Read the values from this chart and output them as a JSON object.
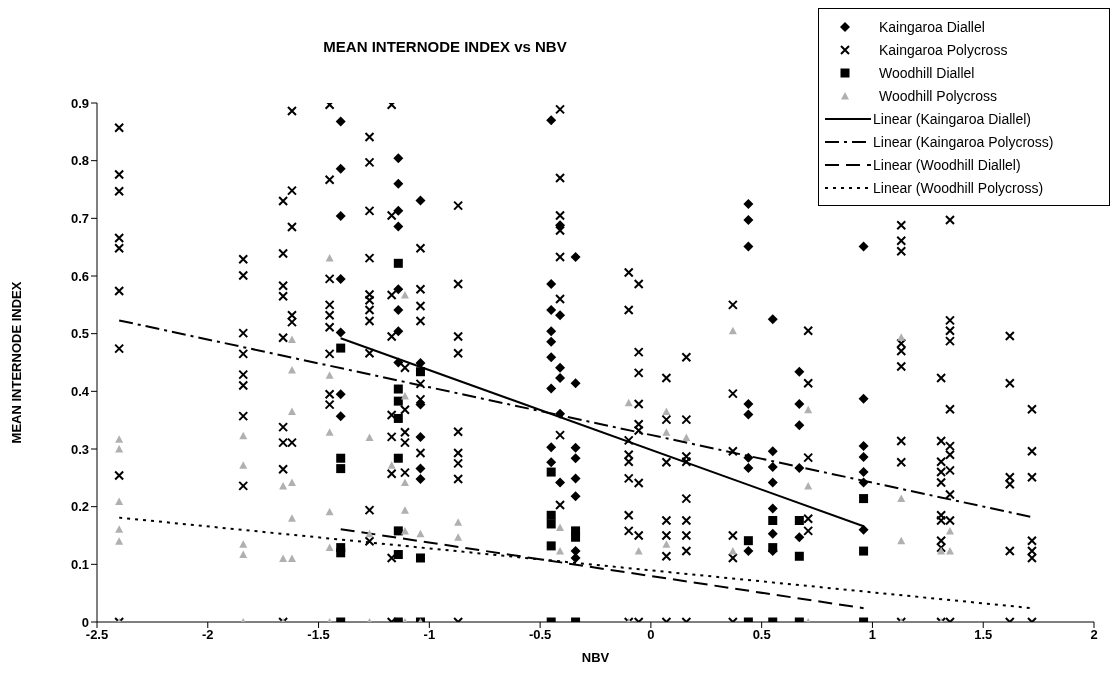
{
  "chart_data": {
    "type": "scatter",
    "title": "MEAN INTERNODE INDEX vs NBV",
    "xlabel": "NBV",
    "ylabel": "MEAN INTERNODE INDEX",
    "xlim": [
      -2.5,
      2
    ],
    "xticks": [
      -2.5,
      -2,
      -1.5,
      -1,
      -0.5,
      0,
      0.5,
      1,
      1.5,
      2
    ],
    "ylim": [
      0,
      0.9
    ],
    "yticks": [
      0,
      0.1,
      0.2,
      0.3,
      0.4,
      0.5,
      0.6,
      0.7,
      0.8,
      0.9
    ],
    "legend": "top right",
    "series": [
      {
        "name": "Kaingaroa Diallel",
        "marker": "diamond",
        "color": "#000000",
        "x": [
          -1.4,
          -1.4,
          -1.4,
          -1.4,
          -1.4,
          -1.4,
          -1.4,
          -1.14,
          -1.14,
          -1.14,
          -1.14,
          -1.14,
          -1.14,
          -1.14,
          -1.14,
          -1.04,
          -1.04,
          -1.04,
          -1.04,
          -1.04,
          -1.04,
          -0.45,
          -0.45,
          -0.45,
          -0.45,
          -0.45,
          -0.45,
          -0.45,
          -0.45,
          -0.45,
          -0.41,
          -0.41,
          -0.41,
          -0.41,
          -0.41,
          -0.41,
          -0.34,
          -0.34,
          -0.34,
          -0.34,
          -0.34,
          -0.34,
          -0.34,
          -0.34,
          0.44,
          0.44,
          0.44,
          0.44,
          0.44,
          0.44,
          0.44,
          0.44,
          0.55,
          0.55,
          0.55,
          0.55,
          0.55,
          0.55,
          0.55,
          0.67,
          0.67,
          0.67,
          0.67,
          0.67,
          0.96,
          0.96,
          0.96,
          0.96,
          0.96,
          0.96,
          0.96
        ],
        "values": [
          0.868,
          0.786,
          0.704,
          0.595,
          0.502,
          0.395,
          0.357,
          0.804,
          0.76,
          0.713,
          0.686,
          0.577,
          0.541,
          0.504,
          0.45,
          0.731,
          0.449,
          0.377,
          0.321,
          0.266,
          0.248,
          0.87,
          0.586,
          0.541,
          0.504,
          0.486,
          0.459,
          0.405,
          0.303,
          0.277,
          0.688,
          0.532,
          0.441,
          0.423,
          0.361,
          0.242,
          0.633,
          0.414,
          0.302,
          0.284,
          0.249,
          0.218,
          0.123,
          0.111,
          0.725,
          0.697,
          0.651,
          0.378,
          0.36,
          0.285,
          0.267,
          0.123,
          0.525,
          0.296,
          0.269,
          0.242,
          0.197,
          0.153,
          0.123,
          0.434,
          0.378,
          0.341,
          0.267,
          0.147,
          0.651,
          0.387,
          0.305,
          0.286,
          0.26,
          0.242,
          0.16
        ]
      },
      {
        "name": "Kaingaroa Polycross",
        "marker": "cross",
        "color": "#000000",
        "x": [
          -2.4,
          -2.4,
          -2.4,
          -2.4,
          -2.4,
          -2.4,
          -2.4,
          -2.4,
          -2.4,
          -1.84,
          -1.84,
          -1.84,
          -1.84,
          -1.84,
          -1.84,
          -1.84,
          -1.84,
          -1.66,
          -1.66,
          -1.66,
          -1.66,
          -1.66,
          -1.66,
          -1.66,
          -1.66,
          -1.66,
          -1.62,
          -1.62,
          -1.62,
          -1.62,
          -1.62,
          -1.62,
          -1.45,
          -1.45,
          -1.45,
          -1.45,
          -1.45,
          -1.45,
          -1.45,
          -1.45,
          -1.45,
          -1.27,
          -1.27,
          -1.27,
          -1.27,
          -1.27,
          -1.27,
          -1.27,
          -1.27,
          -1.27,
          -1.27,
          -1.27,
          -1.17,
          -1.17,
          -1.17,
          -1.17,
          -1.17,
          -1.17,
          -1.17,
          -1.17,
          -1.17,
          -1.11,
          -1.11,
          -1.11,
          -1.11,
          -1.11,
          -1.04,
          -1.04,
          -1.04,
          -1.04,
          -1.04,
          -1.04,
          -1.04,
          -0.87,
          -0.87,
          -0.87,
          -0.87,
          -0.87,
          -0.87,
          -0.87,
          -0.87,
          -0.87,
          -0.41,
          -0.41,
          -0.41,
          -0.41,
          -0.41,
          -0.41,
          -0.41,
          -0.41,
          -0.1,
          -0.1,
          -0.1,
          -0.1,
          -0.1,
          -0.1,
          -0.1,
          -0.1,
          -0.1,
          -0.055,
          -0.055,
          -0.055,
          -0.055,
          -0.055,
          -0.055,
          -0.055,
          -0.055,
          -0.055,
          0.07,
          0.07,
          0.07,
          0.07,
          0.07,
          0.07,
          0.07,
          0.16,
          0.16,
          0.16,
          0.16,
          0.16,
          0.16,
          0.16,
          0.16,
          0.16,
          0.37,
          0.37,
          0.37,
          0.37,
          0.37,
          0.37,
          0.71,
          0.71,
          0.71,
          0.71,
          0.71,
          1.13,
          1.13,
          1.13,
          1.13,
          1.13,
          1.13,
          1.13,
          1.13,
          1.13,
          1.31,
          1.31,
          1.31,
          1.31,
          1.31,
          1.31,
          1.31,
          1.31,
          1.31,
          1.31,
          1.35,
          1.35,
          1.35,
          1.35,
          1.35,
          1.35,
          1.35,
          1.35,
          1.35,
          1.35,
          1.35,
          1.62,
          1.62,
          1.62,
          1.62,
          1.62,
          1.62,
          1.72,
          1.72,
          1.72,
          1.72,
          1.72,
          1.72,
          1.72
        ],
        "values": [
          0.857,
          0.776,
          0.747,
          0.666,
          0.648,
          0.574,
          0.474,
          0.254,
          0,
          0.629,
          0.601,
          0.501,
          0.465,
          0.429,
          0.41,
          0.357,
          0.236,
          0.73,
          0.639,
          0.583,
          0.565,
          0.493,
          0.338,
          0.311,
          0.265,
          0,
          0.886,
          0.748,
          0.685,
          0.532,
          0.52,
          0.311,
          0.897,
          0.767,
          0.595,
          0.55,
          0.532,
          0.511,
          0.465,
          0.395,
          0.377,
          0.841,
          0.797,
          0.713,
          0.631,
          0.568,
          0.558,
          0.541,
          0.522,
          0.466,
          0.194,
          0.14,
          0.897,
          0.705,
          0.567,
          0.495,
          0.359,
          0.321,
          0.257,
          0.111,
          0,
          0.441,
          0.368,
          0.329,
          0.311,
          0.259,
          0.648,
          0.577,
          0.548,
          0.522,
          0.413,
          0.386,
          0.293,
          0.722,
          0.586,
          0.495,
          0.466,
          0.33,
          0.293,
          0.275,
          0.248,
          0,
          0.889,
          0.77,
          0.705,
          0.679,
          0.633,
          0.56,
          0.324,
          0.203,
          0.606,
          0.541,
          0.315,
          0.29,
          0.278,
          0.249,
          0.185,
          0.158,
          0,
          0.586,
          0.468,
          0.432,
          0.378,
          0.343,
          0.332,
          0.241,
          0.15,
          0,
          0.423,
          0.351,
          0.277,
          0.176,
          0.15,
          0.114,
          0,
          0.459,
          0.351,
          0.287,
          0.278,
          0.214,
          0.176,
          0.15,
          0.123,
          0,
          0.55,
          0.396,
          0.296,
          0.15,
          0.111,
          0,
          0.505,
          0.414,
          0.285,
          0.179,
          0.158,
          0.688,
          0.661,
          0.643,
          0.483,
          0.47,
          0.443,
          0.314,
          0.277,
          0,
          0.423,
          0.314,
          0.278,
          0.26,
          0.242,
          0.185,
          0.176,
          0.141,
          0.129,
          0,
          0.697,
          0.523,
          0.505,
          0.487,
          0.369,
          0.305,
          0.29,
          0.263,
          0.221,
          0.176,
          0,
          0.496,
          0.414,
          0.251,
          0.239,
          0.123,
          0,
          0.369,
          0.296,
          0.251,
          0.141,
          0.123,
          0.111,
          0
        ]
      },
      {
        "name": "Woodhill Diallel",
        "marker": "square",
        "color": "#000000",
        "x": [
          -1.4,
          -1.4,
          -1.4,
          -1.4,
          -1.4,
          -1.4,
          -1.14,
          -1.14,
          -1.14,
          -1.14,
          -1.14,
          -1.14,
          -1.14,
          -1.14,
          -1.04,
          -1.04,
          -1.04,
          -0.45,
          -0.45,
          -0.45,
          -0.45,
          -0.45,
          -0.34,
          -0.34,
          -0.34,
          0.44,
          0.44,
          0.55,
          0.55,
          0.55,
          0.67,
          0.67,
          0.67,
          0.96,
          0.96,
          0.96
        ],
        "values": [
          0.475,
          0.284,
          0.266,
          0.129,
          0.12,
          0,
          0.622,
          0.404,
          0.383,
          0.353,
          0.284,
          0.158,
          0.117,
          0,
          0.434,
          0.111,
          0,
          0.26,
          0.185,
          0.17,
          0.132,
          0,
          0.158,
          0.147,
          0,
          0.141,
          0,
          0.176,
          0.129,
          0,
          0.176,
          0.114,
          0,
          0.214,
          0.123,
          0
        ]
      },
      {
        "name": "Woodhill Polycross",
        "marker": "triangle",
        "color": "#b0b0b0",
        "x": [
          -2.4,
          -2.4,
          -2.4,
          -2.4,
          -2.4,
          -2.4,
          -1.84,
          -1.84,
          -1.84,
          -1.84,
          -1.84,
          -1.66,
          -1.66,
          -1.66,
          -1.62,
          -1.62,
          -1.62,
          -1.62,
          -1.62,
          -1.62,
          -1.45,
          -1.45,
          -1.45,
          -1.45,
          -1.45,
          -1.45,
          -1.27,
          -1.27,
          -1.27,
          -1.17,
          -1.11,
          -1.11,
          -1.11,
          -1.11,
          -1.11,
          -1.11,
          -1.04,
          -1.04,
          -0.87,
          -0.87,
          -0.41,
          -0.41,
          -0.1,
          -0.1,
          -0.055,
          0.07,
          0.07,
          0.07,
          0.16,
          0.37,
          0.37,
          0.71,
          0.71,
          0.71,
          1.13,
          1.13,
          1.13,
          1.13,
          1.31,
          1.31,
          1.35,
          1.35
        ],
        "values": [
          0.317,
          0.3,
          0.209,
          0.161,
          0.14,
          0,
          0.323,
          0.272,
          0.135,
          0.117,
          0,
          0.236,
          0.11,
          0,
          0.49,
          0.437,
          0.365,
          0.242,
          0.18,
          0.11,
          0.631,
          0.428,
          0.329,
          0.191,
          0.129,
          0,
          0.32,
          0.153,
          0,
          0.272,
          0.567,
          0.392,
          0.242,
          0.194,
          0.158,
          0,
          0.153,
          0,
          0.173,
          0.147,
          0.164,
          0.123,
          0.38,
          0,
          0.123,
          0.365,
          0.329,
          0.135,
          0.32,
          0.505,
          0.123,
          0.368,
          0.236,
          0,
          0.494,
          0.214,
          0.141,
          0,
          0.123,
          0,
          0.158,
          0.123
        ]
      },
      {
        "name": "Linear (Kaingaroa Diallel)",
        "type": "line",
        "line_style": "solid",
        "color": "#000000",
        "x": [
          -1.4,
          0.96
        ],
        "values": [
          0.492,
          0.166
        ]
      },
      {
        "name": "Linear (Kaingaroa Polycross)",
        "type": "line",
        "line_style": "dashdot",
        "color": "#000000",
        "x": [
          -2.4,
          1.72
        ],
        "values": [
          0.523,
          0.182
        ]
      },
      {
        "name": "Linear (Woodhill Diallel)",
        "type": "line",
        "line_style": "dashed",
        "color": "#000000",
        "x": [
          -1.4,
          0.96
        ],
        "values": [
          0.161,
          0.024
        ]
      },
      {
        "name": "Linear (Woodhill Polycross)",
        "type": "line",
        "line_style": "dotted",
        "color": "#000000",
        "x": [
          -2.4,
          1.72
        ],
        "values": [
          0.181,
          0.024
        ]
      }
    ]
  }
}
